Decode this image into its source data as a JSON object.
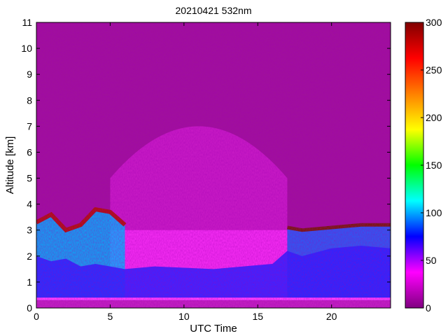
{
  "chart_data": {
    "type": "heatmap",
    "title": "20210421 532nm",
    "xlabel": "UTC Time",
    "ylabel": "Altitude [km]",
    "xlim": [
      0,
      24
    ],
    "ylim": [
      0,
      11
    ],
    "x_ticks": [
      0,
      5,
      10,
      15,
      20
    ],
    "y_ticks": [
      0,
      1,
      2,
      3,
      4,
      5,
      6,
      7,
      8,
      9,
      10,
      11
    ],
    "colorbar": {
      "range": [
        0,
        300
      ],
      "ticks": [
        0,
        50,
        100,
        150,
        200,
        250,
        300
      ],
      "colormap": [
        "#800080",
        "#ff00ff",
        "#0000ff",
        "#00ffff",
        "#00ff00",
        "#ffff00",
        "#ff8000",
        "#ff0000",
        "#800000"
      ]
    },
    "features": {
      "surface_layer_km": [
        0.3,
        0.4
      ],
      "boundary_layer_top_km": {
        "x": [
          0,
          1,
          2,
          3,
          4,
          5,
          6,
          8,
          10,
          12,
          14,
          16,
          17,
          18,
          20,
          22,
          24
        ],
        "y": [
          2.0,
          1.8,
          1.9,
          1.6,
          1.7,
          1.6,
          1.5,
          1.6,
          1.55,
          1.5,
          1.6,
          1.7,
          2.2,
          2.0,
          2.3,
          2.4,
          2.3
        ]
      },
      "aerosol_layer_top_km": {
        "x": [
          0,
          1,
          2,
          3,
          4,
          5,
          6,
          17,
          18,
          20,
          22,
          24
        ],
        "y": [
          3.3,
          3.6,
          3.0,
          3.2,
          3.8,
          3.7,
          3.2,
          3.1,
          3.0,
          3.1,
          3.2,
          3.2
        ]
      }
    }
  }
}
